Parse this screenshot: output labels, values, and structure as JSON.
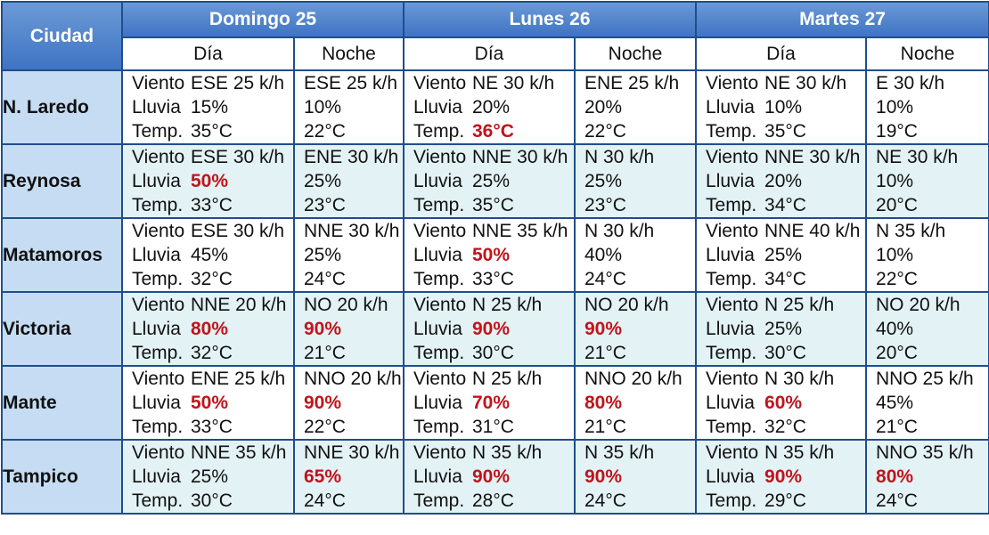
{
  "header": {
    "city_label": "Ciudad",
    "days": [
      "Domingo 25",
      "Lunes 26",
      "Martes 27"
    ],
    "day_label": "Día",
    "night_label": "Noche"
  },
  "labels": {
    "wind": "Viento",
    "rain": "Lluvia",
    "temp": "Temp."
  },
  "colors": {
    "header_blue": "#4a7fc9",
    "city_col": "#c5dcf2",
    "alt_row": "#e3f2f5",
    "border": "#1f4e8c",
    "highlight_red": "#c0141c"
  },
  "cities": [
    {
      "name": "N. Laredo",
      "days": [
        {
          "day": {
            "wind": "ESE 25 k/h",
            "rain": "15%",
            "temp": "35°C"
          },
          "night": {
            "wind": "ESE 25 k/h",
            "rain": "10%",
            "temp": "22°C"
          }
        },
        {
          "day": {
            "wind": "NE 30 k/h",
            "rain": "20%",
            "temp": "36°C"
          },
          "night": {
            "wind": "ENE 25 k/h",
            "rain": "20%",
            "temp": "22°C"
          }
        },
        {
          "day": {
            "wind": "NE 30 k/h",
            "rain": "10%",
            "temp": "35°C"
          },
          "night": {
            "wind": "E 30 k/h",
            "rain": "10%",
            "temp": "19°C"
          }
        }
      ]
    },
    {
      "name": "Reynosa",
      "days": [
        {
          "day": {
            "wind": "ESE 30 k/h",
            "rain": "50%",
            "temp": "33°C"
          },
          "night": {
            "wind": "ENE 30 k/h",
            "rain": "25%",
            "temp": "23°C"
          }
        },
        {
          "day": {
            "wind": "NNE 30 k/h",
            "rain": "25%",
            "temp": "35°C"
          },
          "night": {
            "wind": "N 30 k/h",
            "rain": "25%",
            "temp": "23°C"
          }
        },
        {
          "day": {
            "wind": "NNE 30 k/h",
            "rain": "20%",
            "temp": "34°C"
          },
          "night": {
            "wind": "NE 30 k/h",
            "rain": "10%",
            "temp": "20°C"
          }
        }
      ]
    },
    {
      "name": "Matamoros",
      "days": [
        {
          "day": {
            "wind": "ESE 30 k/h",
            "rain": "45%",
            "temp": "32°C"
          },
          "night": {
            "wind": "NNE 30 k/h",
            "rain": "25%",
            "temp": "24°C"
          }
        },
        {
          "day": {
            "wind": "NNE 35 k/h",
            "rain": "50%",
            "temp": "33°C"
          },
          "night": {
            "wind": "N 30 k/h",
            "rain": "40%",
            "temp": "24°C"
          }
        },
        {
          "day": {
            "wind": "NNE 40 k/h",
            "rain": "25%",
            "temp": "34°C"
          },
          "night": {
            "wind": "N 35 k/h",
            "rain": "10%",
            "temp": "22°C"
          }
        }
      ]
    },
    {
      "name": "Victoria",
      "days": [
        {
          "day": {
            "wind": "NNE 20 k/h",
            "rain": "80%",
            "temp": "32°C"
          },
          "night": {
            "wind": "NO 20 k/h",
            "rain": "90%",
            "temp": "21°C"
          }
        },
        {
          "day": {
            "wind": "N 25 k/h",
            "rain": "90%",
            "temp": "30°C"
          },
          "night": {
            "wind": "NO 20 k/h",
            "rain": "90%",
            "temp": "21°C"
          }
        },
        {
          "day": {
            "wind": "N 25 k/h",
            "rain": "25%",
            "temp": "30°C"
          },
          "night": {
            "wind": "NO 20 k/h",
            "rain": "40%",
            "temp": "20°C"
          }
        }
      ]
    },
    {
      "name": "Mante",
      "days": [
        {
          "day": {
            "wind": "ENE 25 k/h",
            "rain": "50%",
            "temp": "33°C"
          },
          "night": {
            "wind": "NNO 20 k/h",
            "rain": "90%",
            "temp": "22°C"
          }
        },
        {
          "day": {
            "wind": "N 25 k/h",
            "rain": "70%",
            "temp": "31°C"
          },
          "night": {
            "wind": "NNO 20 k/h",
            "rain": "80%",
            "temp": "21°C"
          }
        },
        {
          "day": {
            "wind": "N 30 k/h",
            "rain": "60%",
            "temp": "32°C"
          },
          "night": {
            "wind": "NNO 25 k/h",
            "rain": "45%",
            "temp": "21°C"
          }
        }
      ]
    },
    {
      "name": "Tampico",
      "days": [
        {
          "day": {
            "wind": "NNE 35 k/h",
            "rain": "25%",
            "temp": "30°C"
          },
          "night": {
            "wind": "NNE 30 k/h",
            "rain": "65%",
            "temp": "24°C"
          }
        },
        {
          "day": {
            "wind": "N 35 k/h",
            "rain": "90%",
            "temp": "28°C"
          },
          "night": {
            "wind": "N 35 k/h",
            "rain": "90%",
            "temp": "24°C"
          }
        },
        {
          "day": {
            "wind": "N 35 k/h",
            "rain": "90%",
            "temp": "29°C"
          },
          "night": {
            "wind": "NNO 35 k/h",
            "rain": "80%",
            "temp": "24°C"
          }
        }
      ]
    }
  ]
}
